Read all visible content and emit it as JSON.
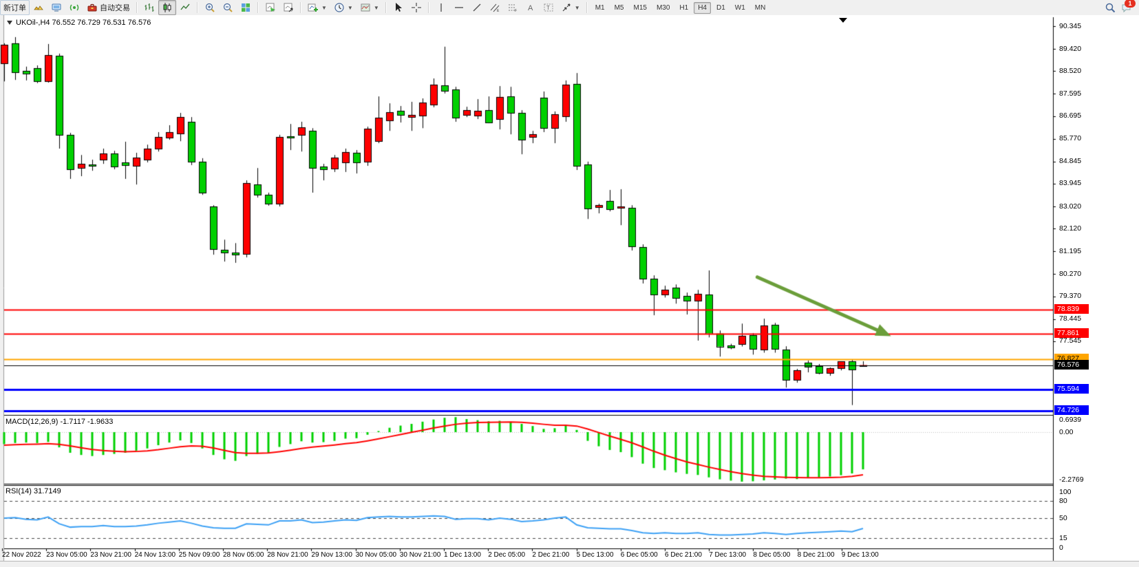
{
  "toolbar": {
    "new_order_label": "新订单",
    "autotrading_label": "自动交易",
    "icons": [
      "gold-bars-icon",
      "terminal-icon",
      "signal-icon",
      "toolbox-icon",
      "bar-chart-icon",
      "candlestick-icon",
      "line-chart-icon",
      "zoom-in-icon",
      "zoom-out-icon",
      "tile-windows-icon",
      "new-chart-icon",
      "profiles-icon",
      "indicators-icon",
      "periods-icon",
      "templates-icon",
      "cursor-icon",
      "crosshair-icon",
      "vertical-line-icon",
      "horizontal-line-icon",
      "trendline-icon",
      "channel-icon",
      "fibonacci-icon",
      "text-icon",
      "text-label-icon",
      "arrows-icon",
      "search-icon",
      "chat-icon"
    ],
    "timeframes": [
      "M1",
      "M5",
      "M15",
      "M30",
      "H1",
      "H4",
      "D1",
      "W1",
      "MN"
    ],
    "active_timeframe": "H4",
    "chat_badge": "1"
  },
  "chart_title": {
    "text": "UKOil-,H4  76.552 76.729 76.531 76.576",
    "symbol": "UKOil-",
    "period": "H4",
    "open": "76.552",
    "high": "76.729",
    "low": "76.531",
    "close": "76.576"
  },
  "panes": {
    "macd_label": "MACD(12,26,9) -1.7117 -1.9633",
    "rsi_label": "RSI(14) 31.7149",
    "macd_scale_labels": [
      "0.6939",
      "0.00",
      "-2.2769"
    ],
    "rsi_scale_labels": [
      "100",
      "80",
      "50",
      "15",
      "0"
    ]
  },
  "price_axis": {
    "ticks": [
      "90.345",
      "89.420",
      "88.520",
      "87.595",
      "86.695",
      "85.770",
      "84.845",
      "83.945",
      "83.020",
      "82.120",
      "81.195",
      "80.270",
      "79.370",
      "78.445",
      "77.545"
    ],
    "badges": [
      {
        "label": "78.839",
        "price": 78.839,
        "bg": "#ff0000",
        "fg": "#ffffff"
      },
      {
        "label": "77.861",
        "price": 77.861,
        "bg": "#ff0000",
        "fg": "#ffffff"
      },
      {
        "label": "76.827",
        "price": 76.827,
        "bg": "#ffa500",
        "fg": "#000000"
      },
      {
        "label": "76.576",
        "price": 76.576,
        "bg": "#000000",
        "fg": "#ffffff"
      },
      {
        "label": "75.594",
        "price": 75.594,
        "bg": "#0000ff",
        "fg": "#ffffff"
      },
      {
        "label": "74.726",
        "price": 74.726,
        "bg": "#0000ff",
        "fg": "#ffffff"
      }
    ]
  },
  "time_axis": {
    "labels": [
      "22 Nov 2022",
      "23 Nov 05:00",
      "23 Nov 21:00",
      "24 Nov 13:00",
      "25 Nov 09:00",
      "28 Nov 05:00",
      "28 Nov 21:00",
      "29 Nov 13:00",
      "30 Nov 05:00",
      "30 Nov 21:00",
      "1 Dec 13:00",
      "2 Dec 05:00",
      "2 Dec 21:00",
      "5 Dec 13:00",
      "6 Dec 05:00",
      "6 Dec 21:00",
      "7 Dec 13:00",
      "8 Dec 05:00",
      "8 Dec 21:00",
      "9 Dec 13:00"
    ]
  },
  "chart_data": {
    "type": "candlestick",
    "symbol": "UKOil-",
    "timeframe": "H4",
    "bull_color": "#ff0000",
    "bear_color": "#00d000",
    "candles": [
      [
        88.83,
        89.65,
        88.1,
        89.59
      ],
      [
        89.65,
        89.9,
        88.16,
        88.47
      ],
      [
        88.53,
        88.7,
        88.14,
        88.42
      ],
      [
        88.64,
        88.75,
        88.03,
        88.11
      ],
      [
        88.11,
        89.62,
        88.05,
        89.17
      ],
      [
        89.14,
        89.23,
        85.37,
        85.93
      ],
      [
        85.93,
        86.01,
        84.14,
        84.53
      ],
      [
        84.59,
        85.11,
        84.25,
        84.75
      ],
      [
        84.72,
        84.92,
        84.47,
        84.67
      ],
      [
        84.92,
        85.37,
        84.75,
        85.17
      ],
      [
        85.17,
        85.28,
        84.53,
        84.64
      ],
      [
        84.81,
        85.65,
        84.14,
        84.7
      ],
      [
        84.67,
        85.2,
        83.91,
        85.0
      ],
      [
        84.92,
        85.53,
        84.81,
        85.37
      ],
      [
        85.37,
        86.04,
        85.25,
        85.84
      ],
      [
        85.81,
        86.32,
        85.73,
        86.04
      ],
      [
        85.98,
        86.82,
        85.67,
        86.65
      ],
      [
        86.46,
        86.65,
        84.7,
        84.84
      ],
      [
        84.84,
        84.98,
        83.49,
        83.58
      ],
      [
        83.02,
        83.07,
        81.06,
        81.28
      ],
      [
        81.25,
        81.67,
        80.78,
        81.14
      ],
      [
        81.14,
        81.53,
        80.73,
        81.06
      ],
      [
        81.09,
        84.08,
        80.95,
        83.97
      ],
      [
        83.91,
        84.58,
        83.38,
        83.49
      ],
      [
        83.49,
        83.58,
        83.05,
        83.13
      ],
      [
        83.13,
        85.93,
        83.02,
        85.84
      ],
      [
        85.87,
        86.37,
        85.31,
        85.81
      ],
      [
        85.93,
        86.46,
        85.25,
        86.23
      ],
      [
        86.09,
        86.2,
        83.58,
        84.58
      ],
      [
        84.64,
        84.75,
        84.08,
        84.53
      ],
      [
        84.56,
        85.11,
        84.42,
        85.0
      ],
      [
        84.81,
        85.37,
        84.42,
        85.23
      ],
      [
        85.2,
        85.31,
        84.36,
        84.81
      ],
      [
        84.84,
        86.26,
        84.67,
        86.18
      ],
      [
        85.67,
        87.49,
        85.59,
        86.62
      ],
      [
        86.51,
        87.21,
        86.09,
        86.85
      ],
      [
        86.9,
        87.1,
        86.43,
        86.74
      ],
      [
        86.65,
        87.27,
        86.09,
        86.74
      ],
      [
        86.71,
        87.41,
        86.2,
        87.24
      ],
      [
        87.16,
        88.22,
        87.05,
        87.97
      ],
      [
        87.94,
        89.51,
        87.61,
        87.72
      ],
      [
        87.77,
        87.88,
        86.46,
        86.62
      ],
      [
        86.74,
        87.07,
        86.65,
        86.93
      ],
      [
        86.71,
        87.38,
        86.57,
        86.9
      ],
      [
        86.93,
        87.49,
        86.4,
        86.43
      ],
      [
        86.57,
        87.91,
        86.15,
        87.47
      ],
      [
        87.49,
        87.88,
        85.95,
        86.82
      ],
      [
        86.82,
        86.93,
        85.14,
        85.73
      ],
      [
        85.84,
        86.09,
        85.59,
        85.95
      ],
      [
        87.44,
        87.69,
        86.04,
        86.2
      ],
      [
        86.2,
        86.88,
        85.59,
        86.76
      ],
      [
        86.68,
        88.14,
        86.46,
        87.97
      ],
      [
        88.0,
        88.44,
        84.5,
        84.67
      ],
      [
        84.72,
        84.84,
        82.51,
        82.93
      ],
      [
        82.99,
        83.13,
        82.74,
        83.07
      ],
      [
        83.24,
        83.69,
        82.82,
        82.91
      ],
      [
        82.96,
        83.72,
        82.26,
        83.02
      ],
      [
        82.96,
        83.07,
        81.23,
        81.4
      ],
      [
        81.37,
        81.48,
        79.89,
        80.08
      ],
      [
        80.08,
        80.22,
        78.6,
        79.44
      ],
      [
        79.44,
        79.8,
        79.32,
        79.63
      ],
      [
        79.71,
        79.85,
        79.07,
        79.3
      ],
      [
        79.38,
        79.52,
        78.63,
        79.19
      ],
      [
        79.19,
        79.63,
        77.57,
        79.46
      ],
      [
        79.44,
        80.42,
        77.7,
        77.86
      ],
      [
        77.86,
        77.98,
        76.92,
        77.33
      ],
      [
        77.36,
        77.44,
        77.22,
        77.28
      ],
      [
        77.42,
        78.26,
        77.33,
        77.76
      ],
      [
        77.79,
        77.87,
        77.0,
        77.22
      ],
      [
        77.2,
        78.46,
        77.08,
        78.18
      ],
      [
        78.21,
        78.29,
        77.08,
        77.22
      ],
      [
        77.2,
        77.34,
        75.66,
        75.97
      ],
      [
        75.97,
        76.42,
        75.86,
        76.36
      ],
      [
        76.67,
        76.76,
        76.28,
        76.5
      ],
      [
        76.53,
        76.62,
        76.2,
        76.25
      ],
      [
        76.25,
        76.48,
        76.14,
        76.44
      ],
      [
        76.44,
        76.7,
        76.36,
        76.72
      ],
      [
        76.72,
        76.81,
        74.95,
        76.39
      ],
      [
        76.552,
        76.729,
        76.531,
        76.576
      ]
    ],
    "macd": {
      "label": "MACD(12,26,9)",
      "main_value": -1.7117,
      "signal_value": -1.9633,
      "scale_max": 0.6939,
      "scale_min": -2.2769,
      "histogram": [
        -0.55,
        -0.5,
        -0.48,
        -0.5,
        -0.45,
        -0.7,
        -0.95,
        -1.05,
        -1.1,
        -1.05,
        -1.0,
        -0.95,
        -0.85,
        -0.75,
        -0.6,
        -0.48,
        -0.38,
        -0.5,
        -0.75,
        -1.05,
        -1.25,
        -1.32,
        -1.1,
        -1.0,
        -0.95,
        -0.68,
        -0.55,
        -0.42,
        -0.48,
        -0.46,
        -0.4,
        -0.3,
        -0.28,
        -0.12,
        0.05,
        0.2,
        0.3,
        0.38,
        0.48,
        0.58,
        0.66,
        0.69,
        0.6,
        0.55,
        0.5,
        0.52,
        0.48,
        0.38,
        0.28,
        0.15,
        0.18,
        0.32,
        0.1,
        -0.4,
        -0.65,
        -0.82,
        -0.92,
        -1.15,
        -1.45,
        -1.65,
        -1.75,
        -1.85,
        -1.92,
        -1.97,
        -2.08,
        -2.17,
        -2.23,
        -2.2769,
        -2.26,
        -2.22,
        -2.18,
        -2.14,
        -2.16,
        -2.12,
        -2.08,
        -2.04,
        -1.98,
        -1.9,
        -1.7117
      ],
      "signal": [
        -0.6,
        -0.58,
        -0.56,
        -0.55,
        -0.53,
        -0.56,
        -0.63,
        -0.72,
        -0.8,
        -0.85,
        -0.88,
        -0.9,
        -0.89,
        -0.86,
        -0.81,
        -0.74,
        -0.67,
        -0.63,
        -0.65,
        -0.73,
        -0.84,
        -0.94,
        -0.97,
        -0.97,
        -0.96,
        -0.9,
        -0.83,
        -0.75,
        -0.69,
        -0.64,
        -0.59,
        -0.53,
        -0.48,
        -0.4,
        -0.31,
        -0.21,
        -0.11,
        -0.01,
        0.09,
        0.19,
        0.28,
        0.36,
        0.41,
        0.44,
        0.45,
        0.46,
        0.47,
        0.45,
        0.41,
        0.36,
        0.32,
        0.32,
        0.28,
        0.14,
        -0.02,
        -0.18,
        -0.33,
        -0.49,
        -0.68,
        -0.88,
        -1.06,
        -1.22,
        -1.37,
        -1.49,
        -1.61,
        -1.72,
        -1.82,
        -1.91,
        -1.98,
        -2.03,
        -2.06,
        -2.08,
        -2.09,
        -2.1,
        -2.1,
        -2.09,
        -2.07,
        -2.03,
        -1.9633
      ]
    },
    "rsi": {
      "label": "RSI(14)",
      "current_value": 31.7149,
      "levels": [
        80,
        50,
        15
      ],
      "values": [
        50,
        51,
        48,
        47,
        52,
        40,
        34,
        35,
        35,
        37,
        35,
        35,
        36,
        38,
        41,
        43,
        45,
        41,
        36,
        33,
        32,
        32,
        40,
        39,
        38,
        45,
        45,
        47,
        42,
        43,
        45,
        47,
        46,
        51,
        52,
        53,
        52,
        52,
        53,
        54,
        53,
        48,
        49,
        49,
        47,
        50,
        48,
        44,
        45,
        47,
        50,
        52,
        38,
        33,
        32,
        31,
        31,
        28,
        24,
        23,
        24,
        23,
        23,
        24,
        21,
        20,
        20,
        21,
        22,
        24,
        23,
        21,
        23,
        24,
        25,
        26,
        27,
        26,
        31.7
      ]
    },
    "hlines": [
      {
        "price": 78.839,
        "color": "#ff0000",
        "width": 2
      },
      {
        "price": 77.861,
        "color": "#ff0000",
        "width": 2
      },
      {
        "price": 76.827,
        "color": "#ffa500",
        "width": 2
      },
      {
        "price": 76.576,
        "color": "#000000",
        "width": 1
      },
      {
        "price": 75.594,
        "color": "#0000ff",
        "width": 3
      },
      {
        "price": 74.726,
        "color": "#0000ff",
        "width": 3
      }
    ],
    "arrow": {
      "from_candle": 68.4,
      "from_price": 80.15,
      "to_candle": 80.2,
      "to_price": 77.82,
      "color": "#6b9e3a"
    }
  }
}
